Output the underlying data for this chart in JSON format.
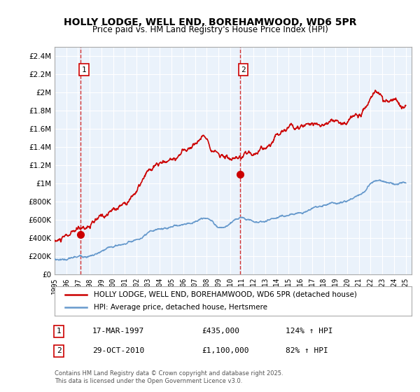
{
  "title": "HOLLY LODGE, WELL END, BOREHAMWOOD, WD6 5PR",
  "subtitle": "Price paid vs. HM Land Registry's House Price Index (HPI)",
  "legend_line1": "HOLLY LODGE, WELL END, BOREHAMWOOD, WD6 5PR (detached house)",
  "legend_line2": "HPI: Average price, detached house, Hertsmere",
  "footnote": "Contains HM Land Registry data © Crown copyright and database right 2025.\nThis data is licensed under the Open Government Licence v3.0.",
  "sale1_label": "1",
  "sale1_date": "17-MAR-1997",
  "sale1_price": "£435,000",
  "sale1_hpi": "124% ↑ HPI",
  "sale2_label": "2",
  "sale2_date": "29-OCT-2010",
  "sale2_price": "£1,100,000",
  "sale2_hpi": "82% ↑ HPI",
  "marker1_year": 1997.21,
  "marker1_price": 435000,
  "marker2_year": 2010.83,
  "marker2_price": 1100000,
  "ylim": [
    0,
    2500000
  ],
  "xlim_start": 1995.0,
  "xlim_end": 2025.5,
  "red_color": "#cc0000",
  "blue_color": "#6699cc",
  "bg_color": "#dce9f5",
  "plot_bg": "#eaf2fb",
  "grid_color": "#ffffff",
  "yticks": [
    0,
    200000,
    400000,
    600000,
    800000,
    1000000,
    1200000,
    1400000,
    1600000,
    1800000,
    2000000,
    2200000,
    2400000
  ],
  "ytick_labels": [
    "£0",
    "£200K",
    "£400K",
    "£600K",
    "£800K",
    "£1M",
    "£1.2M",
    "£1.4M",
    "£1.6M",
    "£1.8M",
    "£2M",
    "£2.2M",
    "£2.4M"
  ],
  "xtick_years": [
    1995,
    1996,
    1997,
    1998,
    1999,
    2000,
    2001,
    2002,
    2003,
    2004,
    2005,
    2006,
    2007,
    2008,
    2009,
    2010,
    2011,
    2012,
    2013,
    2014,
    2015,
    2016,
    2017,
    2018,
    2019,
    2020,
    2021,
    2022,
    2023,
    2024,
    2025
  ]
}
